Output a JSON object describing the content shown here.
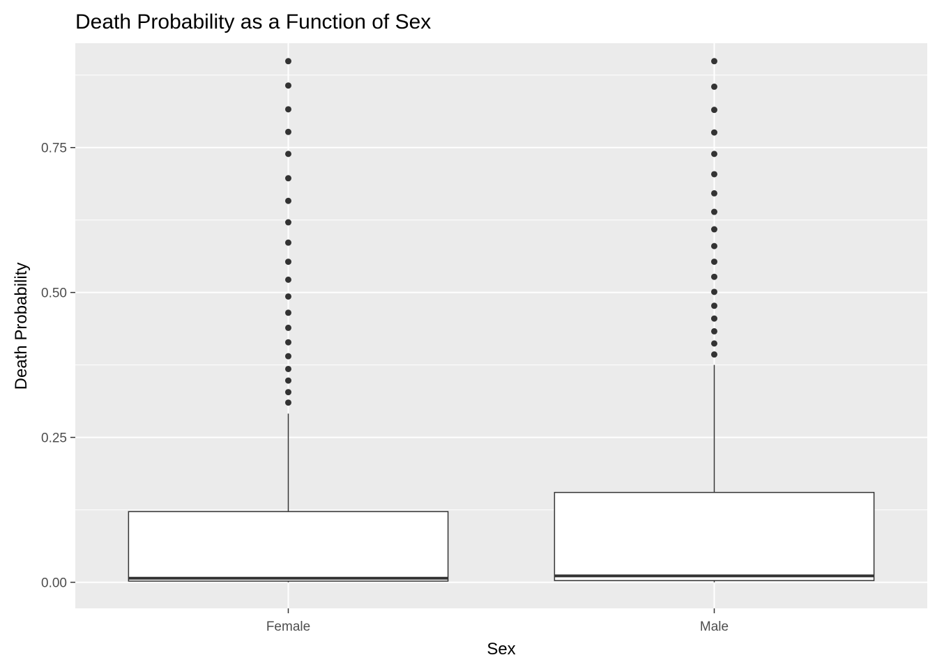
{
  "chart_data": {
    "type": "boxplot",
    "title": "Death Probability as a Function of Sex",
    "xlabel": "Sex",
    "ylabel": "Death Probability",
    "categories": [
      "Female",
      "Male"
    ],
    "ylim": [
      -0.045,
      0.93
    ],
    "yticks": [
      0.0,
      0.25,
      0.5,
      0.75
    ],
    "ytick_labels": [
      "0.00",
      "0.25",
      "0.50",
      "0.75"
    ],
    "grid": true,
    "legend": "none",
    "boxes": [
      {
        "category": "Female",
        "min": 0.0,
        "q1": 0.002,
        "median": 0.007,
        "q3": 0.122,
        "whisker_high": 0.291,
        "outliers": [
          0.31,
          0.328,
          0.348,
          0.368,
          0.39,
          0.414,
          0.439,
          0.465,
          0.493,
          0.522,
          0.553,
          0.586,
          0.621,
          0.658,
          0.697,
          0.739,
          0.777,
          0.816,
          0.857,
          0.899
        ]
      },
      {
        "category": "Male",
        "min": 0.0,
        "q1": 0.003,
        "median": 0.011,
        "q3": 0.155,
        "whisker_high": 0.375,
        "outliers": [
          0.393,
          0.412,
          0.433,
          0.455,
          0.477,
          0.501,
          0.527,
          0.553,
          0.58,
          0.609,
          0.639,
          0.671,
          0.704,
          0.739,
          0.776,
          0.815,
          0.855,
          0.899
        ]
      }
    ],
    "colors": {
      "panel": "#ebebeb",
      "grid": "#ffffff",
      "box_fill": "#ffffff",
      "box_line": "#333333",
      "outlier": "#333333",
      "tick": "#333333"
    }
  }
}
